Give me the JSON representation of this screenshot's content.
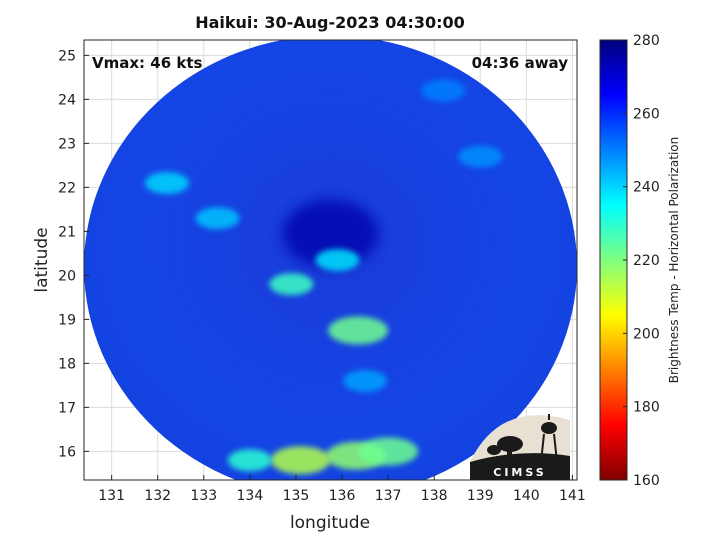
{
  "chart_data": {
    "type": "heatmap",
    "title": "Haikui: 30-Aug-2023 04:30:00",
    "xlabel": "longitude",
    "ylabel": "latitude",
    "xlim": [
      130.4,
      141.1
    ],
    "ylim": [
      15.35,
      25.35
    ],
    "xticks": [
      131,
      132,
      133,
      134,
      135,
      136,
      137,
      138,
      139,
      140,
      141
    ],
    "yticks": [
      16,
      17,
      18,
      19,
      20,
      21,
      22,
      23,
      24,
      25
    ],
    "grid": true,
    "annotations": {
      "vmax": "Vmax: 46 kts",
      "time_offset": "04:36 away"
    },
    "colorbar": {
      "label": "Brightness Temp - Horizontal Polarization",
      "min": 160,
      "max": 280,
      "ticks": [
        160,
        180,
        200,
        220,
        240,
        260,
        280
      ],
      "colormap": "jet"
    },
    "swath": {
      "center_lon": 135.75,
      "center_lat": 20.2,
      "radius_lon": 5.35,
      "radius_lat": 5.25
    },
    "features": [
      {
        "lon": 135.75,
        "lat": 20.95,
        "value": 275
      },
      {
        "lon": 135.9,
        "lat": 20.35,
        "value": 238
      },
      {
        "lon": 134.9,
        "lat": 19.8,
        "value": 228
      },
      {
        "lon": 136.35,
        "lat": 18.75,
        "value": 222
      },
      {
        "lon": 133.3,
        "lat": 21.3,
        "value": 242
      },
      {
        "lon": 132.2,
        "lat": 22.1,
        "value": 240
      },
      {
        "lon": 139.0,
        "lat": 22.7,
        "value": 248
      },
      {
        "lon": 138.2,
        "lat": 24.2,
        "value": 250
      },
      {
        "lon": 136.3,
        "lat": 15.9,
        "value": 218
      },
      {
        "lon": 135.1,
        "lat": 15.8,
        "value": 214
      },
      {
        "lon": 137.0,
        "lat": 16.0,
        "value": 222
      },
      {
        "lon": 134.0,
        "lat": 15.8,
        "value": 230
      },
      {
        "lon": 136.5,
        "lat": 17.6,
        "value": 246
      }
    ]
  },
  "logo": {
    "text": "CIMSS"
  }
}
